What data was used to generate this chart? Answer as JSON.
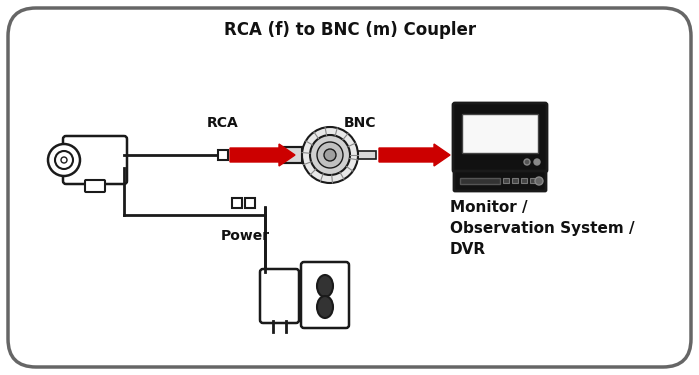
{
  "title": "RCA (f) to BNC (m) Coupler",
  "label_rca": "RCA",
  "label_bnc": "BNC",
  "label_power": "Power",
  "label_monitor": "Monitor /\nObservation System /\nDVR",
  "bg_color": "#ffffff",
  "border_color": "#666666",
  "line_color": "#1a1a1a",
  "arrow_color": "#cc0000",
  "text_color": "#111111",
  "title_fontsize": 12,
  "label_fontsize": 10,
  "small_fontsize": 9,
  "fig_w": 6.99,
  "fig_h": 3.75,
  "dpi": 100
}
